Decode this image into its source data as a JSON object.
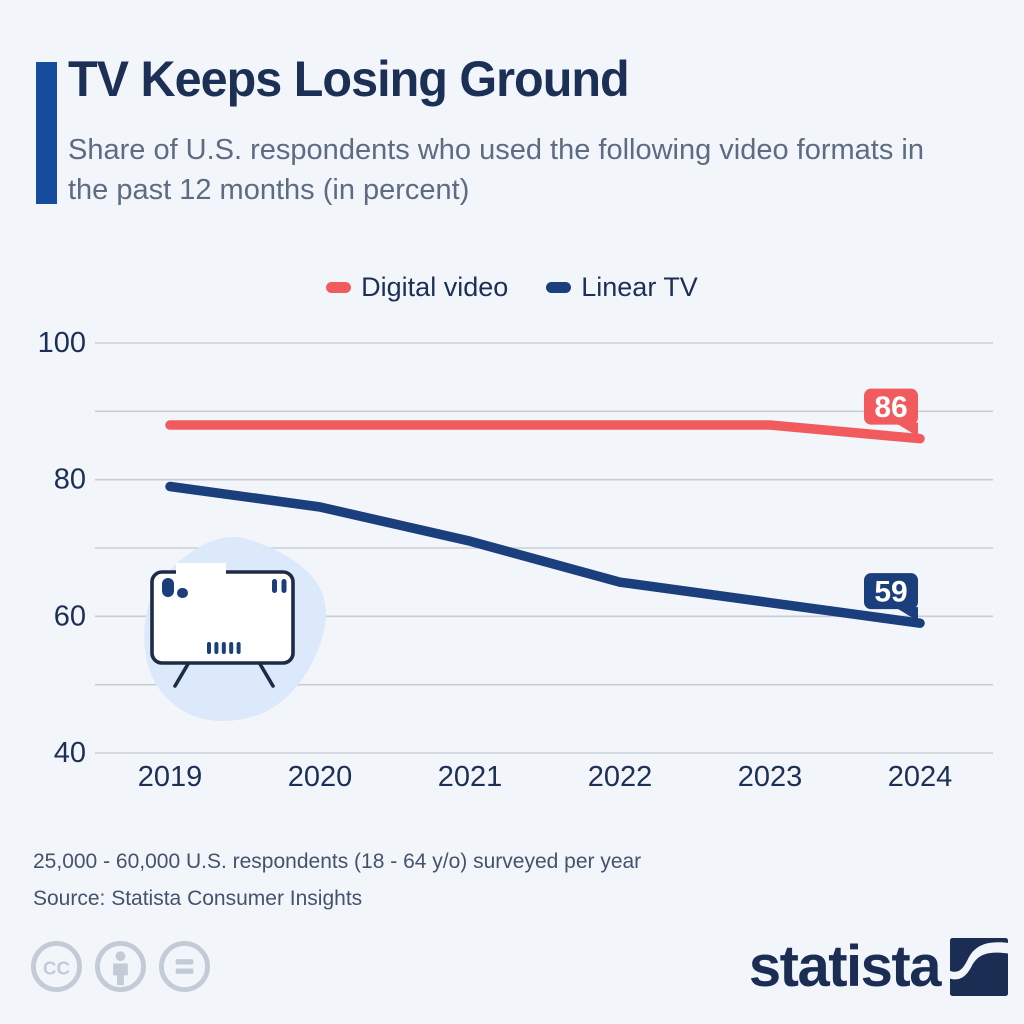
{
  "header": {
    "title": "TV Keeps Losing Ground",
    "subtitle": "Share of U.S. respondents who used the following video formats in the past 12 months (in percent)"
  },
  "legend": {
    "items": [
      {
        "label": "Digital video",
        "color": "#f15b5e"
      },
      {
        "label": "Linear TV",
        "color": "#1b3e7d"
      }
    ]
  },
  "chart_data": {
    "type": "line",
    "title": "Share of U.S. respondents who used the following video formats in the past 12 months (in percent)",
    "x": [
      "2019",
      "2020",
      "2021",
      "2022",
      "2023",
      "2024"
    ],
    "series": [
      {
        "name": "Digital video",
        "color": "#f15b5e",
        "values": [
          88,
          88,
          88,
          88,
          88,
          86
        ],
        "end_label": "86"
      },
      {
        "name": "Linear TV",
        "color": "#1b3e7d",
        "values": [
          79,
          76,
          71,
          65,
          62,
          59
        ],
        "end_label": "59"
      }
    ],
    "ylim": [
      40,
      100
    ],
    "yticks": [
      40,
      60,
      80,
      100
    ],
    "gridline_step": 10,
    "grid": true,
    "legend_position": "top-center",
    "unit": "percent"
  },
  "footer": {
    "note": "25,000 - 60,000 U.S. respondents (18 - 64 y/o) surveyed per year",
    "source": "Source: Statista Consumer Insights"
  },
  "branding": {
    "logo_text": "statista",
    "license_icons": [
      "cc-icon",
      "attribution-icon",
      "equal-icon"
    ]
  },
  "colors": {
    "background": "#f2f6fa",
    "title": "#1c2f55",
    "subtitle": "#5d6c82",
    "accent_bar": "#164c9e",
    "gridline": "#c9ced6",
    "axis_label": "#1c2f55",
    "footnote": "#44536b",
    "license_gray": "#c3ccd6",
    "digital_video": "#f15b5e",
    "linear_tv": "#1b3e7d"
  }
}
